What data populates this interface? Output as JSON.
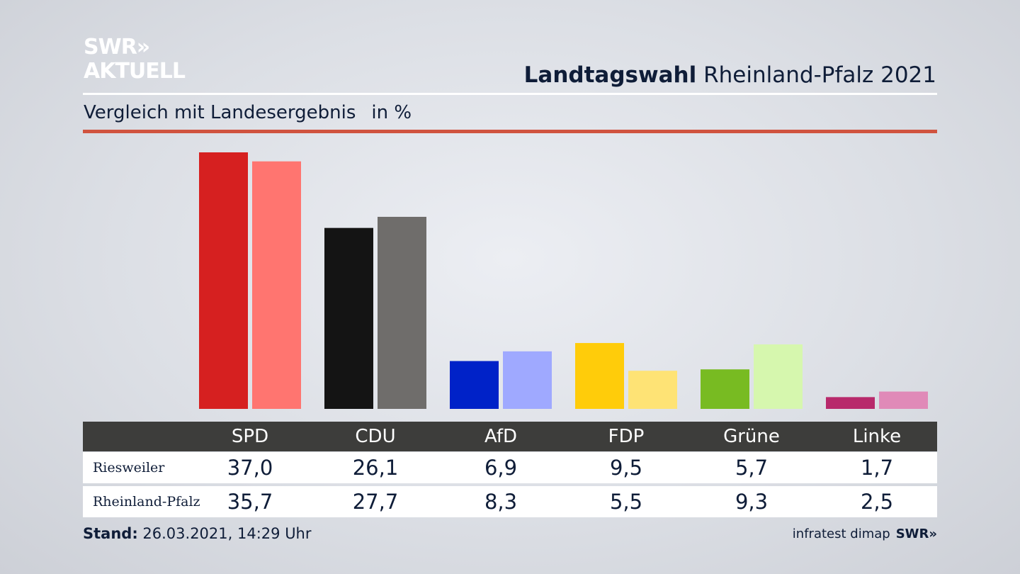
{
  "logo": {
    "line1": "SWR»",
    "line2": "AKTUELL"
  },
  "title": {
    "bold": "Landtagswahl",
    "rest": "Rheinland-Pfalz 2021"
  },
  "subtitle": {
    "text": "Vergleich mit Landesergebnis",
    "unit": "in %"
  },
  "chart_data": {
    "type": "bar",
    "categories": [
      "SPD",
      "CDU",
      "AfD",
      "FDP",
      "Grüne",
      "Linke"
    ],
    "series": [
      {
        "name": "Riesweiler",
        "values": [
          37.0,
          26.1,
          6.9,
          9.5,
          5.7,
          1.7
        ],
        "labels": [
          "37,0",
          "26,1",
          "6,9",
          "9,5",
          "5,7",
          "1,7"
        ]
      },
      {
        "name": "Rheinland-Pfalz",
        "values": [
          35.7,
          27.7,
          8.3,
          5.5,
          9.3,
          2.5
        ],
        "labels": [
          "35,7",
          "27,7",
          "8,3",
          "5,5",
          "9,3",
          "2,5"
        ]
      }
    ],
    "colors": {
      "Riesweiler": [
        "#d62020",
        "#141414",
        "#0022c8",
        "#ffcc0a",
        "#78bb22",
        "#b8296b"
      ],
      "Rheinland-Pfalz": [
        "#ff7570",
        "#6f6d6b",
        "#9fa9ff",
        "#fee375",
        "#d6f7ae",
        "#e08ab8"
      ]
    },
    "ylim": [
      0,
      37.0
    ]
  },
  "footer": {
    "stand_label": "Stand:",
    "stand_value": "26.03.2021, 14:29 Uhr",
    "source": "infratest dimap",
    "brand": "SWR»"
  }
}
